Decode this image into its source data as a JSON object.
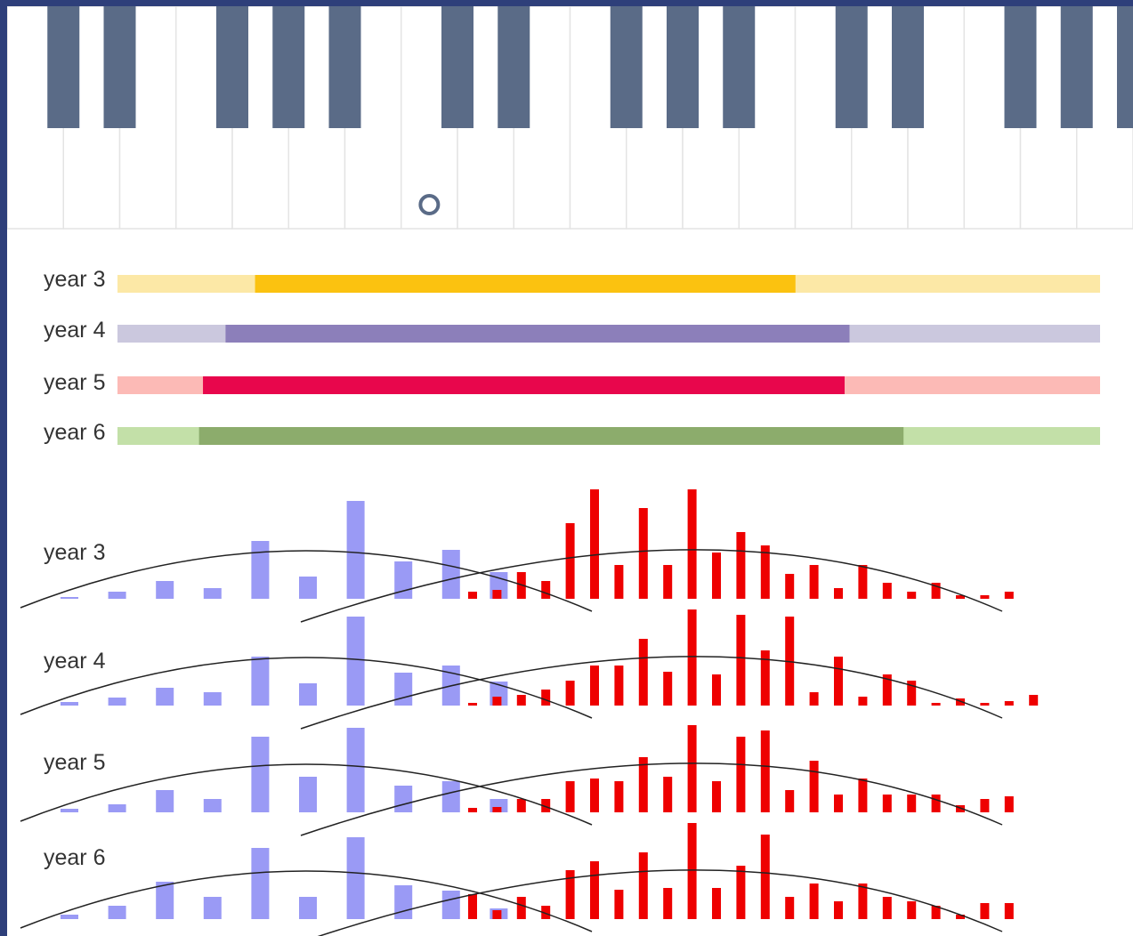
{
  "colors": {
    "background": "#2e3f7a",
    "black_key": "#5a6b87",
    "key_border": "#e4e4e4",
    "cursor": "#5a6b87",
    "low_bars": "#9a9af5",
    "high_bars": "#ee0000",
    "curve": "#222222"
  },
  "keyboard": {
    "white_keys": 20,
    "black_key_slots": [
      0,
      1,
      3,
      4,
      5,
      7,
      8,
      10,
      11,
      12,
      14,
      15,
      17,
      18,
      19
    ],
    "cursor_icon": "circle-marker-icon",
    "cursor_key_index": 7
  },
  "ranges": [
    {
      "label": "year 3",
      "dark": "#fbc210",
      "light": "#fce8a6",
      "full": [
        0.0,
        1.0
      ],
      "core": [
        0.14,
        0.69
      ]
    },
    {
      "label": "year 4",
      "dark": "#8c7fba",
      "light": "#cbc8de",
      "full": [
        0.0,
        1.0
      ],
      "core": [
        0.11,
        0.745
      ]
    },
    {
      "label": "year 5",
      "dark": "#e8064c",
      "light": "#fcbab6",
      "full": [
        0.0,
        1.0
      ],
      "core": [
        0.087,
        0.74
      ]
    },
    {
      "label": "year 6",
      "dark": "#8cac6c",
      "light": "#c3e0a8",
      "full": [
        0.0,
        1.0
      ],
      "core": [
        0.083,
        0.8
      ]
    }
  ],
  "chart_data": [
    {
      "type": "bar",
      "title": "year 3",
      "low_values": [
        0,
        8,
        20,
        12,
        65,
        25,
        110,
        42,
        55,
        30
      ],
      "high_values": [
        8,
        10,
        30,
        20,
        85,
        123,
        38,
        102,
        38,
        123,
        52,
        75,
        60,
        28,
        38,
        12,
        38,
        18,
        8,
        18,
        4,
        4,
        8
      ]
    },
    {
      "type": "bar",
      "title": "year 4",
      "low_values": [
        4,
        9,
        20,
        15,
        55,
        25,
        100,
        37,
        45,
        27
      ],
      "high_values": [
        3,
        10,
        12,
        18,
        28,
        45,
        45,
        75,
        38,
        108,
        35,
        102,
        62,
        100,
        15,
        55,
        10,
        35,
        28,
        3,
        8,
        3,
        5,
        12
      ]
    },
    {
      "type": "bar",
      "title": "year 5",
      "low_values": [
        4,
        9,
        25,
        15,
        85,
        40,
        95,
        30,
        35,
        15
      ],
      "high_values": [
        5,
        6,
        15,
        15,
        35,
        38,
        35,
        62,
        40,
        98,
        35,
        85,
        92,
        25,
        58,
        20,
        38,
        20,
        20,
        20,
        8,
        15,
        18
      ]
    },
    {
      "type": "bar",
      "title": "year 6",
      "low_values": [
        5,
        15,
        42,
        25,
        80,
        25,
        92,
        38,
        32,
        12
      ],
      "high_values": [
        28,
        10,
        25,
        15,
        55,
        65,
        33,
        75,
        35,
        108,
        35,
        60,
        95,
        25,
        40,
        20,
        40,
        25,
        20,
        15,
        5,
        18,
        18
      ]
    }
  ]
}
